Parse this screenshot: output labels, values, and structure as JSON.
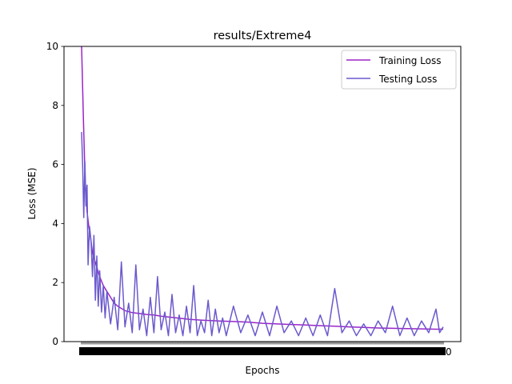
{
  "chart_data": {
    "type": "line",
    "title": "results/Extreme4",
    "xlabel": "Epochs",
    "ylabel": "Loss (MSE)",
    "xlim": [
      0,
      1000
    ],
    "ylim": [
      0,
      10
    ],
    "yticks": [
      0,
      2,
      4,
      6,
      8,
      10
    ],
    "xticks_note": "ticks at every epoch, labels overlap into a solid bar; last label ends in 0",
    "grid": false,
    "legend_position": "top-right",
    "series": [
      {
        "name": "Training Loss",
        "color": "#9b24c9",
        "points": [
          [
            0,
            10.0
          ],
          [
            5,
            7.5
          ],
          [
            10,
            5.4
          ],
          [
            15,
            4.4
          ],
          [
            20,
            3.9
          ],
          [
            25,
            3.5
          ],
          [
            30,
            3.0
          ],
          [
            40,
            2.6
          ],
          [
            50,
            2.2
          ],
          [
            60,
            1.9
          ],
          [
            70,
            1.7
          ],
          [
            80,
            1.5
          ],
          [
            90,
            1.3
          ],
          [
            100,
            1.2
          ],
          [
            120,
            1.05
          ],
          [
            140,
            0.98
          ],
          [
            160,
            0.95
          ],
          [
            180,
            0.92
          ],
          [
            200,
            0.9
          ],
          [
            220,
            0.86
          ],
          [
            250,
            0.82
          ],
          [
            280,
            0.78
          ],
          [
            300,
            0.75
          ],
          [
            340,
            0.72
          ],
          [
            380,
            0.7
          ],
          [
            420,
            0.68
          ],
          [
            460,
            0.66
          ],
          [
            500,
            0.62
          ],
          [
            540,
            0.6
          ],
          [
            580,
            0.58
          ],
          [
            620,
            0.56
          ],
          [
            660,
            0.54
          ],
          [
            700,
            0.52
          ],
          [
            740,
            0.5
          ],
          [
            780,
            0.48
          ],
          [
            820,
            0.46
          ],
          [
            860,
            0.45
          ],
          [
            900,
            0.44
          ],
          [
            940,
            0.43
          ],
          [
            980,
            0.42
          ],
          [
            1000,
            0.42
          ]
        ]
      },
      {
        "name": "Testing Loss",
        "color": "#6a5acd",
        "points": [
          [
            0,
            7.1
          ],
          [
            3,
            5.9
          ],
          [
            6,
            4.2
          ],
          [
            9,
            6.1
          ],
          [
            12,
            4.6
          ],
          [
            15,
            5.3
          ],
          [
            18,
            2.6
          ],
          [
            22,
            3.9
          ],
          [
            26,
            3.4
          ],
          [
            30,
            2.2
          ],
          [
            34,
            3.6
          ],
          [
            38,
            1.4
          ],
          [
            42,
            2.9
          ],
          [
            46,
            1.2
          ],
          [
            50,
            2.4
          ],
          [
            55,
            1.0
          ],
          [
            60,
            1.9
          ],
          [
            65,
            0.8
          ],
          [
            70,
            1.7
          ],
          [
            80,
            0.6
          ],
          [
            90,
            1.5
          ],
          [
            100,
            0.4
          ],
          [
            110,
            2.7
          ],
          [
            120,
            0.5
          ],
          [
            130,
            1.3
          ],
          [
            140,
            0.3
          ],
          [
            150,
            2.6
          ],
          [
            160,
            0.4
          ],
          [
            170,
            1.1
          ],
          [
            180,
            0.2
          ],
          [
            190,
            1.5
          ],
          [
            200,
            0.3
          ],
          [
            210,
            2.2
          ],
          [
            220,
            0.4
          ],
          [
            230,
            1.0
          ],
          [
            240,
            0.2
          ],
          [
            250,
            1.6
          ],
          [
            260,
            0.3
          ],
          [
            270,
            0.9
          ],
          [
            280,
            0.2
          ],
          [
            290,
            1.2
          ],
          [
            300,
            0.3
          ],
          [
            310,
            1.9
          ],
          [
            320,
            0.2
          ],
          [
            330,
            0.7
          ],
          [
            340,
            0.3
          ],
          [
            350,
            1.4
          ],
          [
            360,
            0.2
          ],
          [
            370,
            1.1
          ],
          [
            380,
            0.3
          ],
          [
            390,
            0.8
          ],
          [
            400,
            0.2
          ],
          [
            420,
            1.2
          ],
          [
            440,
            0.3
          ],
          [
            460,
            0.9
          ],
          [
            480,
            0.2
          ],
          [
            500,
            1.0
          ],
          [
            520,
            0.2
          ],
          [
            540,
            1.2
          ],
          [
            560,
            0.3
          ],
          [
            580,
            0.7
          ],
          [
            600,
            0.2
          ],
          [
            620,
            0.8
          ],
          [
            640,
            0.2
          ],
          [
            660,
            0.9
          ],
          [
            680,
            0.2
          ],
          [
            700,
            1.8
          ],
          [
            720,
            0.3
          ],
          [
            740,
            0.7
          ],
          [
            760,
            0.2
          ],
          [
            780,
            0.6
          ],
          [
            800,
            0.2
          ],
          [
            820,
            0.7
          ],
          [
            840,
            0.3
          ],
          [
            860,
            1.2
          ],
          [
            880,
            0.2
          ],
          [
            900,
            0.8
          ],
          [
            920,
            0.2
          ],
          [
            940,
            0.7
          ],
          [
            960,
            0.3
          ],
          [
            980,
            1.1
          ],
          [
            990,
            0.3
          ],
          [
            1000,
            0.5
          ]
        ]
      }
    ]
  }
}
